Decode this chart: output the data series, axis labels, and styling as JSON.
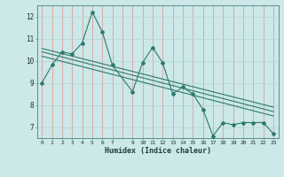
{
  "xlabel": "Humidex (Indice chaleur)",
  "bg_color": "#cce8e8",
  "line_color": "#2d7a6a",
  "xlim": [
    -0.5,
    23.5
  ],
  "ylim": [
    6.5,
    12.5
  ],
  "yticks": [
    7,
    8,
    9,
    10,
    11,
    12
  ],
  "xtick_vals": [
    0,
    1,
    2,
    3,
    4,
    5,
    6,
    7,
    9,
    10,
    11,
    12,
    13,
    14,
    15,
    16,
    17,
    18,
    19,
    20,
    21,
    22,
    23
  ],
  "main_x": [
    0,
    1,
    2,
    3,
    4,
    5,
    6,
    7,
    9,
    10,
    11,
    12,
    13,
    14,
    15,
    16,
    17,
    18,
    19,
    20,
    21,
    22,
    23
  ],
  "main_y": [
    9.0,
    9.8,
    10.4,
    10.3,
    10.8,
    12.2,
    11.3,
    9.8,
    8.6,
    9.9,
    10.6,
    9.9,
    8.5,
    8.8,
    8.5,
    7.8,
    6.6,
    7.2,
    7.1,
    7.2,
    7.2,
    7.2,
    6.7
  ],
  "trend_lines": [
    {
      "x0": 0,
      "y0": 10.4,
      "x1": 23,
      "y1": 7.7
    },
    {
      "x0": 0,
      "y0": 10.55,
      "x1": 23,
      "y1": 7.9
    },
    {
      "x0": 0,
      "y0": 10.2,
      "x1": 23,
      "y1": 7.5
    }
  ],
  "vgrid_color": "#d8a0a0",
  "hgrid_color": "#b8d8d8"
}
